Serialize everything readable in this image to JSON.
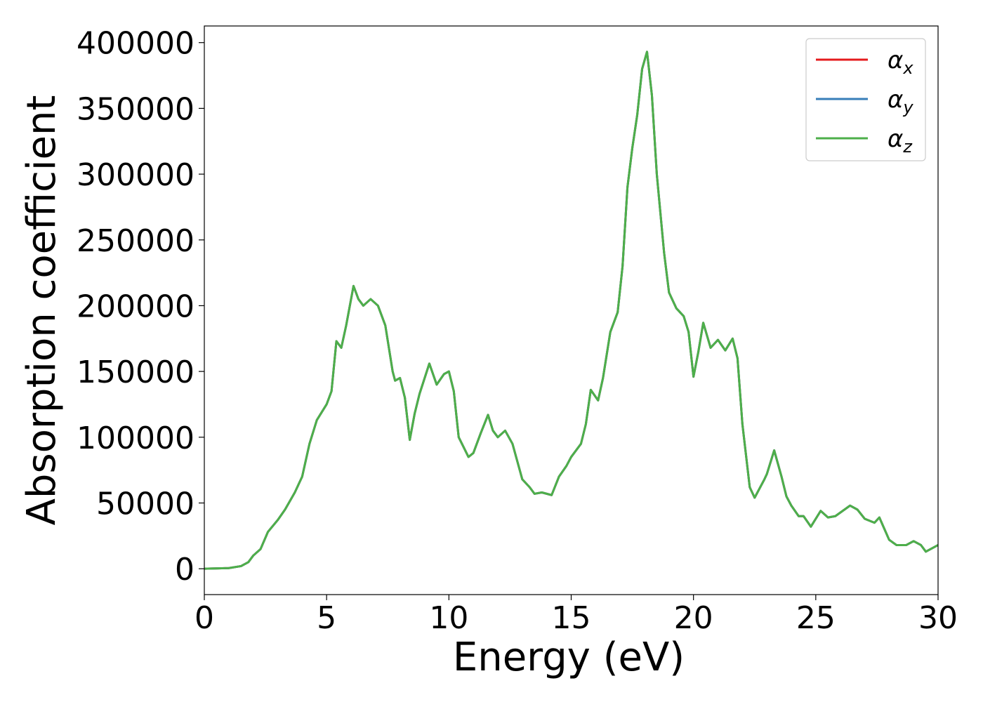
{
  "chart_data": {
    "type": "line",
    "xlabel": "Energy (eV)",
    "ylabel": "Absorption coefficient",
    "x": [
      0,
      1,
      1.5,
      1.8,
      2,
      2.3,
      2.6,
      3,
      3.3,
      3.7,
      4,
      4.3,
      4.6,
      5,
      5.2,
      5.4,
      5.6,
      5.8,
      6.1,
      6.3,
      6.5,
      6.8,
      7.1,
      7.4,
      7.7,
      7.8,
      8,
      8.2,
      8.4,
      8.6,
      8.8,
      9.2,
      9.5,
      9.8,
      10,
      10.2,
      10.4,
      10.8,
      11,
      11.3,
      11.6,
      11.8,
      12,
      12.3,
      12.6,
      13,
      13.3,
      13.5,
      13.8,
      14.2,
      14.5,
      14.8,
      15,
      15.4,
      15.6,
      15.8,
      16.1,
      16.3,
      16.6,
      16.9,
      17.1,
      17.3,
      17.5,
      17.7,
      17.9,
      18.1,
      18.3,
      18.5,
      18.8,
      19,
      19.3,
      19.6,
      19.8,
      20,
      20.2,
      20.4,
      20.7,
      21,
      21.3,
      21.6,
      21.8,
      22,
      22.3,
      22.5,
      22.9,
      23,
      23.3,
      23.6,
      23.8,
      24,
      24.3,
      24.5,
      24.8,
      25.2,
      25.5,
      25.8,
      26.1,
      26.4,
      26.7,
      27,
      27.4,
      27.6,
      28,
      28.3,
      28.7,
      29,
      29.3,
      29.5,
      30
    ],
    "series": [
      {
        "name": "αx",
        "color": "#e41a1c",
        "values": [
          0,
          500,
          2000,
          5000,
          10000,
          15000,
          28000,
          37000,
          45000,
          58000,
          70000,
          95000,
          113000,
          125000,
          135000,
          173000,
          168000,
          185000,
          215000,
          205000,
          200000,
          205000,
          200000,
          185000,
          150000,
          143000,
          145000,
          130000,
          98000,
          118000,
          133000,
          156000,
          140000,
          148000,
          150000,
          135000,
          100000,
          85000,
          88000,
          103000,
          117000,
          105000,
          100000,
          105000,
          95000,
          68000,
          62000,
          57000,
          58000,
          56000,
          70000,
          78000,
          85000,
          95000,
          110000,
          136000,
          128000,
          145000,
          180000,
          195000,
          230000,
          290000,
          320000,
          345000,
          380000,
          393000,
          360000,
          300000,
          240000,
          210000,
          198000,
          192000,
          180000,
          146000,
          165000,
          187000,
          168000,
          174000,
          166000,
          175000,
          160000,
          110000,
          62000,
          54000,
          68000,
          72000,
          90000,
          70000,
          55000,
          48000,
          40000,
          40000,
          32000,
          44000,
          39000,
          40000,
          44000,
          48000,
          45000,
          38000,
          35000,
          39000,
          22000,
          18000,
          18000,
          21000,
          18000,
          13000,
          18000
        ]
      },
      {
        "name": "αy",
        "color": "#377eb8",
        "values": [
          0,
          500,
          2000,
          5000,
          10000,
          15000,
          28000,
          37000,
          45000,
          58000,
          70000,
          95000,
          113000,
          125000,
          135000,
          173000,
          168000,
          185000,
          215000,
          205000,
          200000,
          205000,
          200000,
          185000,
          150000,
          143000,
          145000,
          130000,
          98000,
          118000,
          133000,
          156000,
          140000,
          148000,
          150000,
          135000,
          100000,
          85000,
          88000,
          103000,
          117000,
          105000,
          100000,
          105000,
          95000,
          68000,
          62000,
          57000,
          58000,
          56000,
          70000,
          78000,
          85000,
          95000,
          110000,
          136000,
          128000,
          145000,
          180000,
          195000,
          230000,
          290000,
          320000,
          345000,
          380000,
          393000,
          360000,
          300000,
          240000,
          210000,
          198000,
          192000,
          180000,
          146000,
          165000,
          187000,
          168000,
          174000,
          166000,
          175000,
          160000,
          110000,
          62000,
          54000,
          68000,
          72000,
          90000,
          70000,
          55000,
          48000,
          40000,
          40000,
          32000,
          44000,
          39000,
          40000,
          44000,
          48000,
          45000,
          38000,
          35000,
          39000,
          22000,
          18000,
          18000,
          21000,
          18000,
          13000,
          18000
        ]
      },
      {
        "name": "αz",
        "color": "#4daf4a",
        "values": [
          0,
          500,
          2000,
          5000,
          10000,
          15000,
          28000,
          37000,
          45000,
          58000,
          70000,
          95000,
          113000,
          125000,
          135000,
          173000,
          168000,
          185000,
          215000,
          205000,
          200000,
          205000,
          200000,
          185000,
          150000,
          143000,
          145000,
          130000,
          98000,
          118000,
          133000,
          156000,
          140000,
          148000,
          150000,
          135000,
          100000,
          85000,
          88000,
          103000,
          117000,
          105000,
          100000,
          105000,
          95000,
          68000,
          62000,
          57000,
          58000,
          56000,
          70000,
          78000,
          85000,
          95000,
          110000,
          136000,
          128000,
          145000,
          180000,
          195000,
          230000,
          290000,
          320000,
          345000,
          380000,
          393000,
          360000,
          300000,
          240000,
          210000,
          198000,
          192000,
          180000,
          146000,
          165000,
          187000,
          168000,
          174000,
          166000,
          175000,
          160000,
          110000,
          62000,
          54000,
          68000,
          72000,
          90000,
          70000,
          55000,
          48000,
          40000,
          40000,
          32000,
          44000,
          39000,
          40000,
          44000,
          48000,
          45000,
          38000,
          35000,
          39000,
          22000,
          18000,
          18000,
          21000,
          18000,
          13000,
          18000
        ]
      }
    ],
    "xlim": [
      0,
      30
    ],
    "xticks": [
      0,
      5,
      10,
      15,
      20,
      25,
      30
    ],
    "ylim": [
      -19650,
      412650
    ],
    "yticks": [
      0,
      50000,
      100000,
      150000,
      200000,
      250000,
      300000,
      350000,
      400000
    ],
    "legend": "upper right",
    "grid": false
  }
}
